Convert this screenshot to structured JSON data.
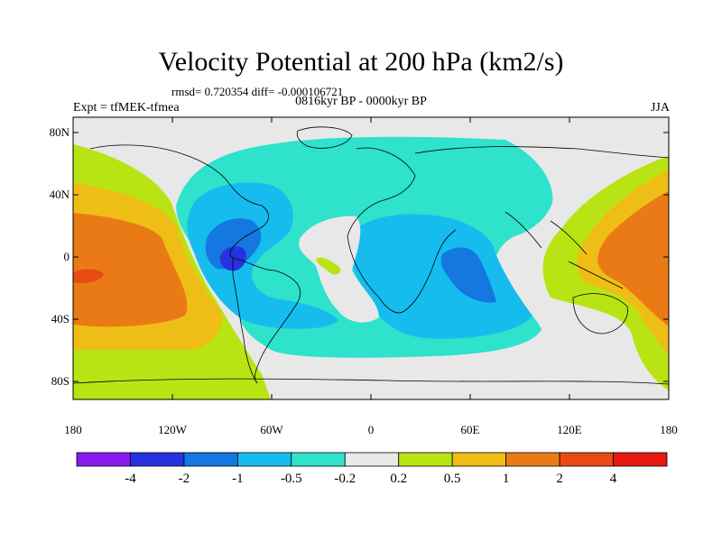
{
  "title": "Velocity Potential at 200 hPa (km2/s)",
  "stats_line": "rmsd= 0.720354 diff= -0.000106721",
  "period": "0816kyr BP - 0000kyr BP",
  "experiment": "Expt = tfMEK-tfmea",
  "season": "JJA",
  "axes": {
    "lat_ticks": [
      "80N",
      "40N",
      "0",
      "40S",
      "80S"
    ],
    "lon_ticks": [
      "180",
      "120W",
      "60W",
      "0",
      "60E",
      "120E",
      "180"
    ]
  },
  "colorbar": {
    "levels": [
      "-4",
      "-2",
      "-1",
      "-0.5",
      "-0.2",
      "0.2",
      "0.5",
      "1",
      "2",
      "4"
    ],
    "colors": [
      "#8a1aee",
      "#2632e0",
      "#1478e0",
      "#16bcee",
      "#2ee2cc",
      "#e8e8e8",
      "#b8e414",
      "#eebe16",
      "#ea7a16",
      "#e84a14",
      "#e41a12"
    ]
  },
  "fields": {
    "land": "#e8e8e8",
    "blue_light": "#2ee2cc",
    "blue_mid": "#16bcee",
    "blue_dark": "#1478e0",
    "blue_core": "#2632e0",
    "yellow": "#b8e414",
    "amber": "#eebe16",
    "orange": "#ea7a16",
    "red": "#e84a14"
  }
}
